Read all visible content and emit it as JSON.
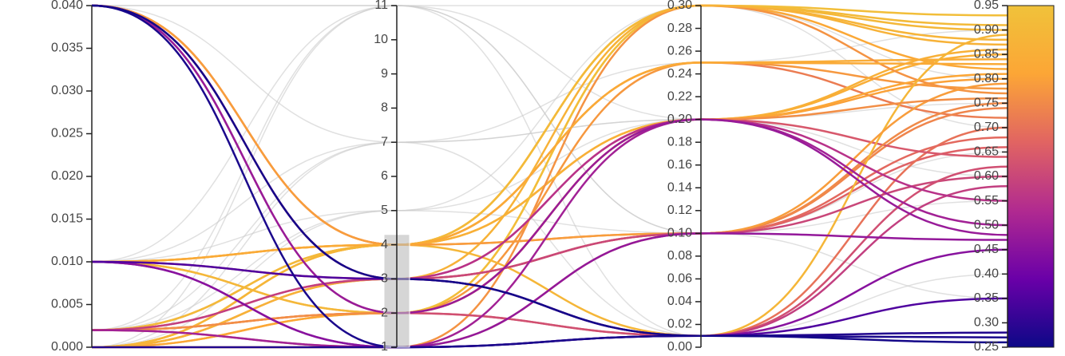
{
  "chart_data": {
    "type": "parallel",
    "colorscale": [
      "#0d0887",
      "#6a00a8",
      "#b12a90",
      "#e16462",
      "#fca636",
      "#f0c23a"
    ],
    "color_dimension": 3,
    "brush": {
      "dimension": 1,
      "range": [
        1,
        4.3
      ]
    },
    "dimensions": [
      {
        "ylim": [
          0,
          0.04
        ],
        "yticks": [
          {
            "value": 0,
            "label": "0.000"
          },
          0.005,
          {
            "value": 0.01,
            "label": "0.010"
          },
          0.015,
          {
            "value": 0.02,
            "label": "0.020"
          },
          0.025,
          {
            "value": 0.03,
            "label": "0.030"
          },
          0.035,
          {
            "value": 0.04,
            "label": "0.040"
          }
        ]
      },
      {
        "ylim": [
          1,
          11
        ],
        "yticks": [
          1,
          2,
          3,
          4,
          5,
          6,
          7,
          8,
          9,
          10,
          11
        ]
      },
      {
        "ylim": [
          0,
          0.3
        ],
        "yticks": [
          {
            "value": 0,
            "label": "0.00"
          },
          0.02,
          0.04,
          0.06,
          0.08,
          {
            "value": 0.1,
            "label": "0.10"
          },
          0.12,
          0.14,
          0.16,
          0.18,
          {
            "value": 0.2,
            "label": "0.20"
          },
          0.22,
          0.24,
          0.26,
          0.28,
          {
            "value": 0.3,
            "label": "0.30"
          }
        ]
      },
      {
        "ylim": [
          0.25,
          0.95
        ],
        "yticks": [
          0.25,
          {
            "value": 0.3,
            "label": "0.30"
          },
          0.35,
          {
            "value": 0.4,
            "label": "0.40"
          },
          0.45,
          {
            "value": 0.5,
            "label": "0.50"
          },
          0.55,
          {
            "value": 0.6,
            "label": "0.60"
          },
          0.65,
          {
            "value": 0.7,
            "label": "0.70"
          },
          0.75,
          {
            "value": 0.8,
            "label": "0.80"
          },
          0.85,
          {
            "value": 0.9,
            "label": "0.90"
          },
          0.95
        ]
      }
    ],
    "lines": [
      [
        0.04,
        11,
        0.1,
        0.55
      ],
      [
        0.01,
        7,
        0.2,
        0.6
      ],
      [
        0.002,
        11,
        0.3,
        0.7
      ],
      [
        0,
        7,
        0.2,
        0.5
      ],
      [
        0.04,
        7,
        0.01,
        0.4
      ],
      [
        0.01,
        5,
        0.3,
        0.8
      ],
      [
        0,
        5,
        0.1,
        0.65
      ],
      [
        0.002,
        7,
        0.25,
        0.9
      ],
      [
        0.04,
        11,
        0.2,
        0.85
      ],
      [
        0,
        11,
        0.01,
        0.45
      ],
      [
        0.01,
        11,
        0.1,
        0.35
      ],
      [
        0.002,
        5,
        0.2,
        0.75
      ],
      [
        0.04,
        4,
        0.3,
        0.82
      ],
      [
        0.04,
        4,
        0.25,
        0.72
      ],
      [
        0.01,
        4,
        0.3,
        0.88
      ],
      [
        0.01,
        2,
        0.2,
        0.8
      ],
      [
        0.01,
        3,
        0.1,
        0.66
      ],
      [
        0.01,
        4,
        0.2,
        0.85
      ],
      [
        0.01,
        2,
        0.3,
        0.9
      ],
      [
        0.002,
        2,
        0.25,
        0.78
      ],
      [
        0.002,
        4,
        0.1,
        0.74
      ],
      [
        0.002,
        2,
        0.01,
        0.7
      ],
      [
        0.002,
        1,
        0.1,
        0.68
      ],
      [
        0.002,
        4,
        0.3,
        0.91
      ],
      [
        0.002,
        3,
        0.2,
        0.64
      ],
      [
        0,
        4,
        0.2,
        0.86
      ],
      [
        0,
        2,
        0.3,
        0.93
      ],
      [
        0,
        3,
        0.1,
        0.75
      ],
      [
        0,
        4,
        0.25,
        0.84
      ],
      [
        0,
        2,
        0.2,
        0.81
      ],
      [
        0,
        1,
        0.3,
        0.77
      ],
      [
        0,
        4,
        0.01,
        0.89
      ],
      [
        0,
        3,
        0.3,
        0.87
      ],
      [
        0.04,
        4,
        0.1,
        0.79
      ],
      [
        0.01,
        4,
        0.25,
        0.83
      ],
      [
        0.002,
        2,
        0.2,
        0.76
      ],
      [
        0.04,
        3,
        0.1,
        0.6
      ],
      [
        0.04,
        2,
        0.01,
        0.62
      ],
      [
        0.002,
        3,
        0.01,
        0.58
      ],
      [
        0.04,
        3,
        0.2,
        0.55
      ],
      [
        0.002,
        1,
        0.2,
        0.5
      ],
      [
        0.04,
        2,
        0.2,
        0.48
      ],
      [
        0.01,
        1,
        0.1,
        0.47
      ],
      [
        0.01,
        1,
        0.01,
        0.45
      ],
      [
        0.01,
        3,
        0.01,
        0.35
      ],
      [
        0,
        1,
        0.01,
        0.28
      ],
      [
        0.04,
        1,
        0.01,
        0.27
      ],
      [
        0.04,
        3,
        0.01,
        0.26
      ]
    ]
  }
}
